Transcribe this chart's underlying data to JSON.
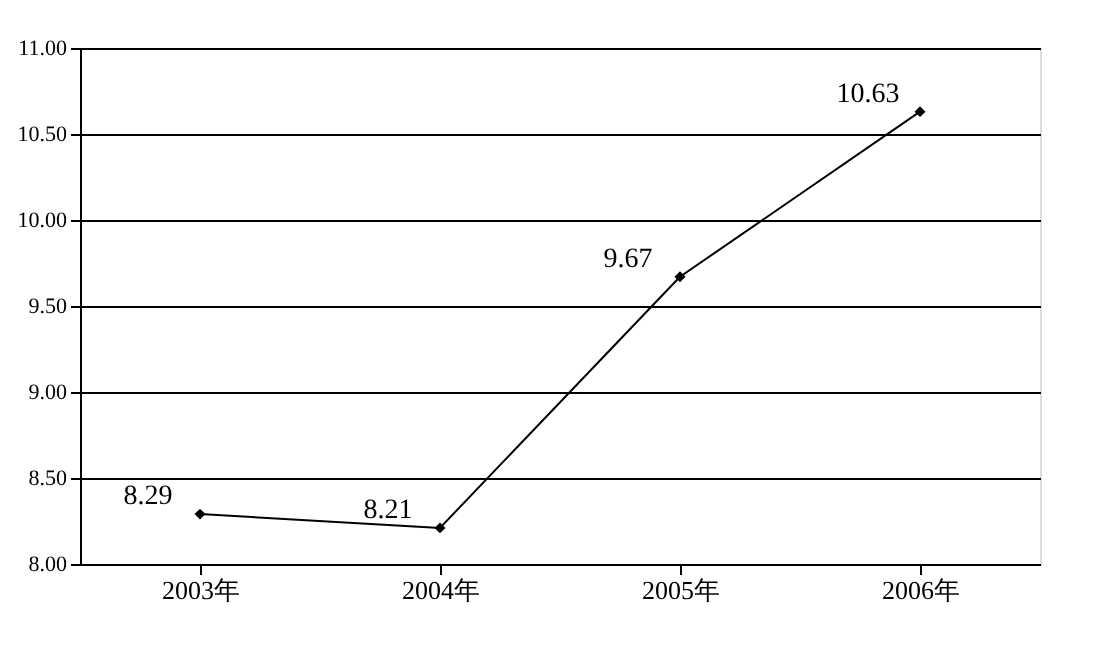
{
  "chart_data": {
    "type": "line",
    "categories": [
      "2003年",
      "2004年",
      "2005年",
      "2006年"
    ],
    "series": [
      {
        "color": "#000000",
        "values": [
          8.29,
          8.21,
          9.67,
          10.63
        ]
      }
    ],
    "ylim": [
      8,
      11
    ],
    "yticks": [
      {
        "value": 8,
        "label": "8.00"
      },
      {
        "value": 8.5,
        "label": "8.50"
      },
      {
        "value": 9,
        "label": "9.00"
      },
      {
        "value": 9.5,
        "label": "9.50"
      },
      {
        "value": 10,
        "label": "10.00"
      },
      {
        "value": 10.5,
        "label": "10.50"
      },
      {
        "value": 11,
        "label": "11.00"
      }
    ],
    "grid": "y",
    "marker": "diamond",
    "line_style": "solid",
    "data_labels": true
  }
}
